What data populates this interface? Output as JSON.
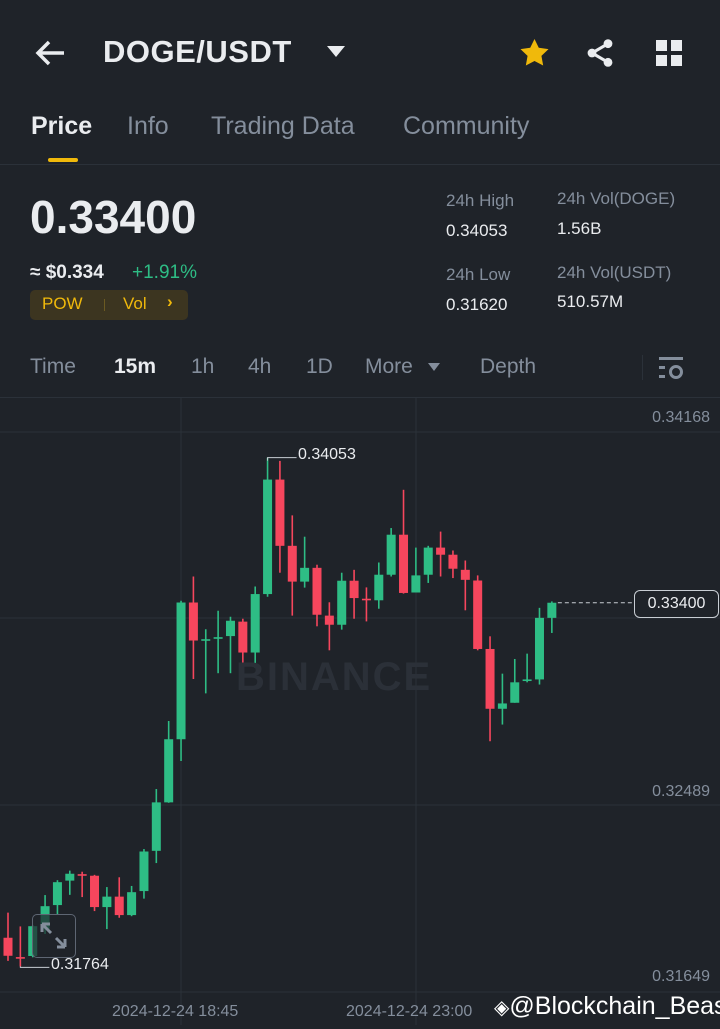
{
  "header": {
    "title": "DOGE/USDT",
    "icons": [
      "back-arrow-icon",
      "caret-down-icon",
      "star-icon",
      "share-icon",
      "grid-icon"
    ],
    "star_color": "#f0b90b"
  },
  "tabs": [
    {
      "label": "Price",
      "active": true
    },
    {
      "label": "Info"
    },
    {
      "label": "Trading Data"
    },
    {
      "label": "Community"
    }
  ],
  "ticker": {
    "last_price": "0.33400",
    "fiat": "≈ $0.334",
    "change": "+1.91%",
    "tags": [
      "POW",
      "Vol"
    ],
    "stats": [
      {
        "label": "24h High",
        "value": "0.34053"
      },
      {
        "label": "24h Vol(DOGE)",
        "value": "1.56B"
      },
      {
        "label": "24h Low",
        "value": "0.31620"
      },
      {
        "label": "24h Vol(USDT)",
        "value": "510.57M"
      }
    ]
  },
  "timeframes": [
    {
      "label": "Time"
    },
    {
      "label": "15m",
      "active": true
    },
    {
      "label": "1h"
    },
    {
      "label": "4h"
    },
    {
      "label": "1D"
    },
    {
      "label": "More"
    },
    {
      "label": "Depth"
    }
  ],
  "colors": {
    "up": "#2ebd85",
    "down": "#f6465d",
    "background": "#1f2329"
  },
  "chart_data": {
    "type": "candlestick",
    "interval": "15m",
    "y_ticks": [
      "0.34168",
      "0.32489",
      "0.31649"
    ],
    "x_ticks": [
      "2024-12-24 18:45",
      "2024-12-24 23:00"
    ],
    "ylim": [
      0.31649,
      0.34168
    ],
    "current_price": "0.33400",
    "high_marker": "0.34053",
    "low_marker": "0.31764",
    "watermark": "BINANCE",
    "ohlc": [
      [
        0.31893,
        0.32006,
        0.31789,
        0.31812
      ],
      [
        0.31806,
        0.31944,
        0.31764,
        0.31802
      ],
      [
        0.31811,
        0.3195,
        0.31805,
        0.31945
      ],
      [
        0.31932,
        0.32085,
        0.3191,
        0.32035
      ],
      [
        0.3204,
        0.32152,
        0.31999,
        0.32143
      ],
      [
        0.3215,
        0.32195,
        0.32086,
        0.32181
      ],
      [
        0.32179,
        0.3219,
        0.32076,
        0.32175
      ],
      [
        0.32172,
        0.32176,
        0.32013,
        0.32031
      ],
      [
        0.32031,
        0.32121,
        0.31932,
        0.32078
      ],
      [
        0.32078,
        0.32165,
        0.31983,
        0.31995
      ],
      [
        0.31995,
        0.32126,
        0.3199,
        0.32098
      ],
      [
        0.32103,
        0.32292,
        0.32069,
        0.32281
      ],
      [
        0.32284,
        0.32562,
        0.32229,
        0.32502
      ],
      [
        0.32502,
        0.32868,
        0.325,
        0.32786
      ],
      [
        0.32786,
        0.33409,
        0.32688,
        0.33401
      ],
      [
        0.33401,
        0.33518,
        0.33057,
        0.3323
      ],
      [
        0.33232,
        0.33281,
        0.32992,
        0.33236
      ],
      [
        0.33241,
        0.33364,
        0.33083,
        0.33245
      ],
      [
        0.3325,
        0.33337,
        0.33083,
        0.33319
      ],
      [
        0.33315,
        0.33328,
        0.33108,
        0.33176
      ],
      [
        0.33176,
        0.33473,
        0.33108,
        0.33439
      ],
      [
        0.33439,
        0.34053,
        0.33427,
        0.33954
      ],
      [
        0.33954,
        0.34038,
        0.33535,
        0.33656
      ],
      [
        0.33656,
        0.33793,
        0.33342,
        0.33495
      ],
      [
        0.33495,
        0.33697,
        0.33468,
        0.33557
      ],
      [
        0.33557,
        0.33571,
        0.33294,
        0.33346
      ],
      [
        0.33342,
        0.33402,
        0.33186,
        0.33301
      ],
      [
        0.33301,
        0.33535,
        0.33279,
        0.33499
      ],
      [
        0.33499,
        0.33548,
        0.33328,
        0.33421
      ],
      [
        0.33418,
        0.33469,
        0.33316,
        0.33415
      ],
      [
        0.33411,
        0.33581,
        0.33373,
        0.33526
      ],
      [
        0.33526,
        0.33736,
        0.33518,
        0.33706
      ],
      [
        0.33706,
        0.33908,
        0.33441,
        0.33444
      ],
      [
        0.33446,
        0.33648,
        0.33446,
        0.33523
      ],
      [
        0.33526,
        0.33656,
        0.33489,
        0.33648
      ],
      [
        0.33648,
        0.3372,
        0.33518,
        0.33616
      ],
      [
        0.33616,
        0.33635,
        0.33511,
        0.33553
      ],
      [
        0.33548,
        0.3359,
        0.33366,
        0.33503
      ],
      [
        0.335,
        0.33523,
        0.33186,
        0.33192
      ],
      [
        0.33192,
        0.33249,
        0.32777,
        0.32923
      ],
      [
        0.32923,
        0.33081,
        0.32852,
        0.32947
      ],
      [
        0.3295,
        0.33147,
        0.3295,
        0.33042
      ],
      [
        0.33048,
        0.33171,
        0.33042,
        0.33055
      ],
      [
        0.33055,
        0.33377,
        0.33032,
        0.33332
      ],
      [
        0.33332,
        0.33406,
        0.33264,
        0.334
      ]
    ]
  },
  "credit": "@Blockchain_Beast"
}
